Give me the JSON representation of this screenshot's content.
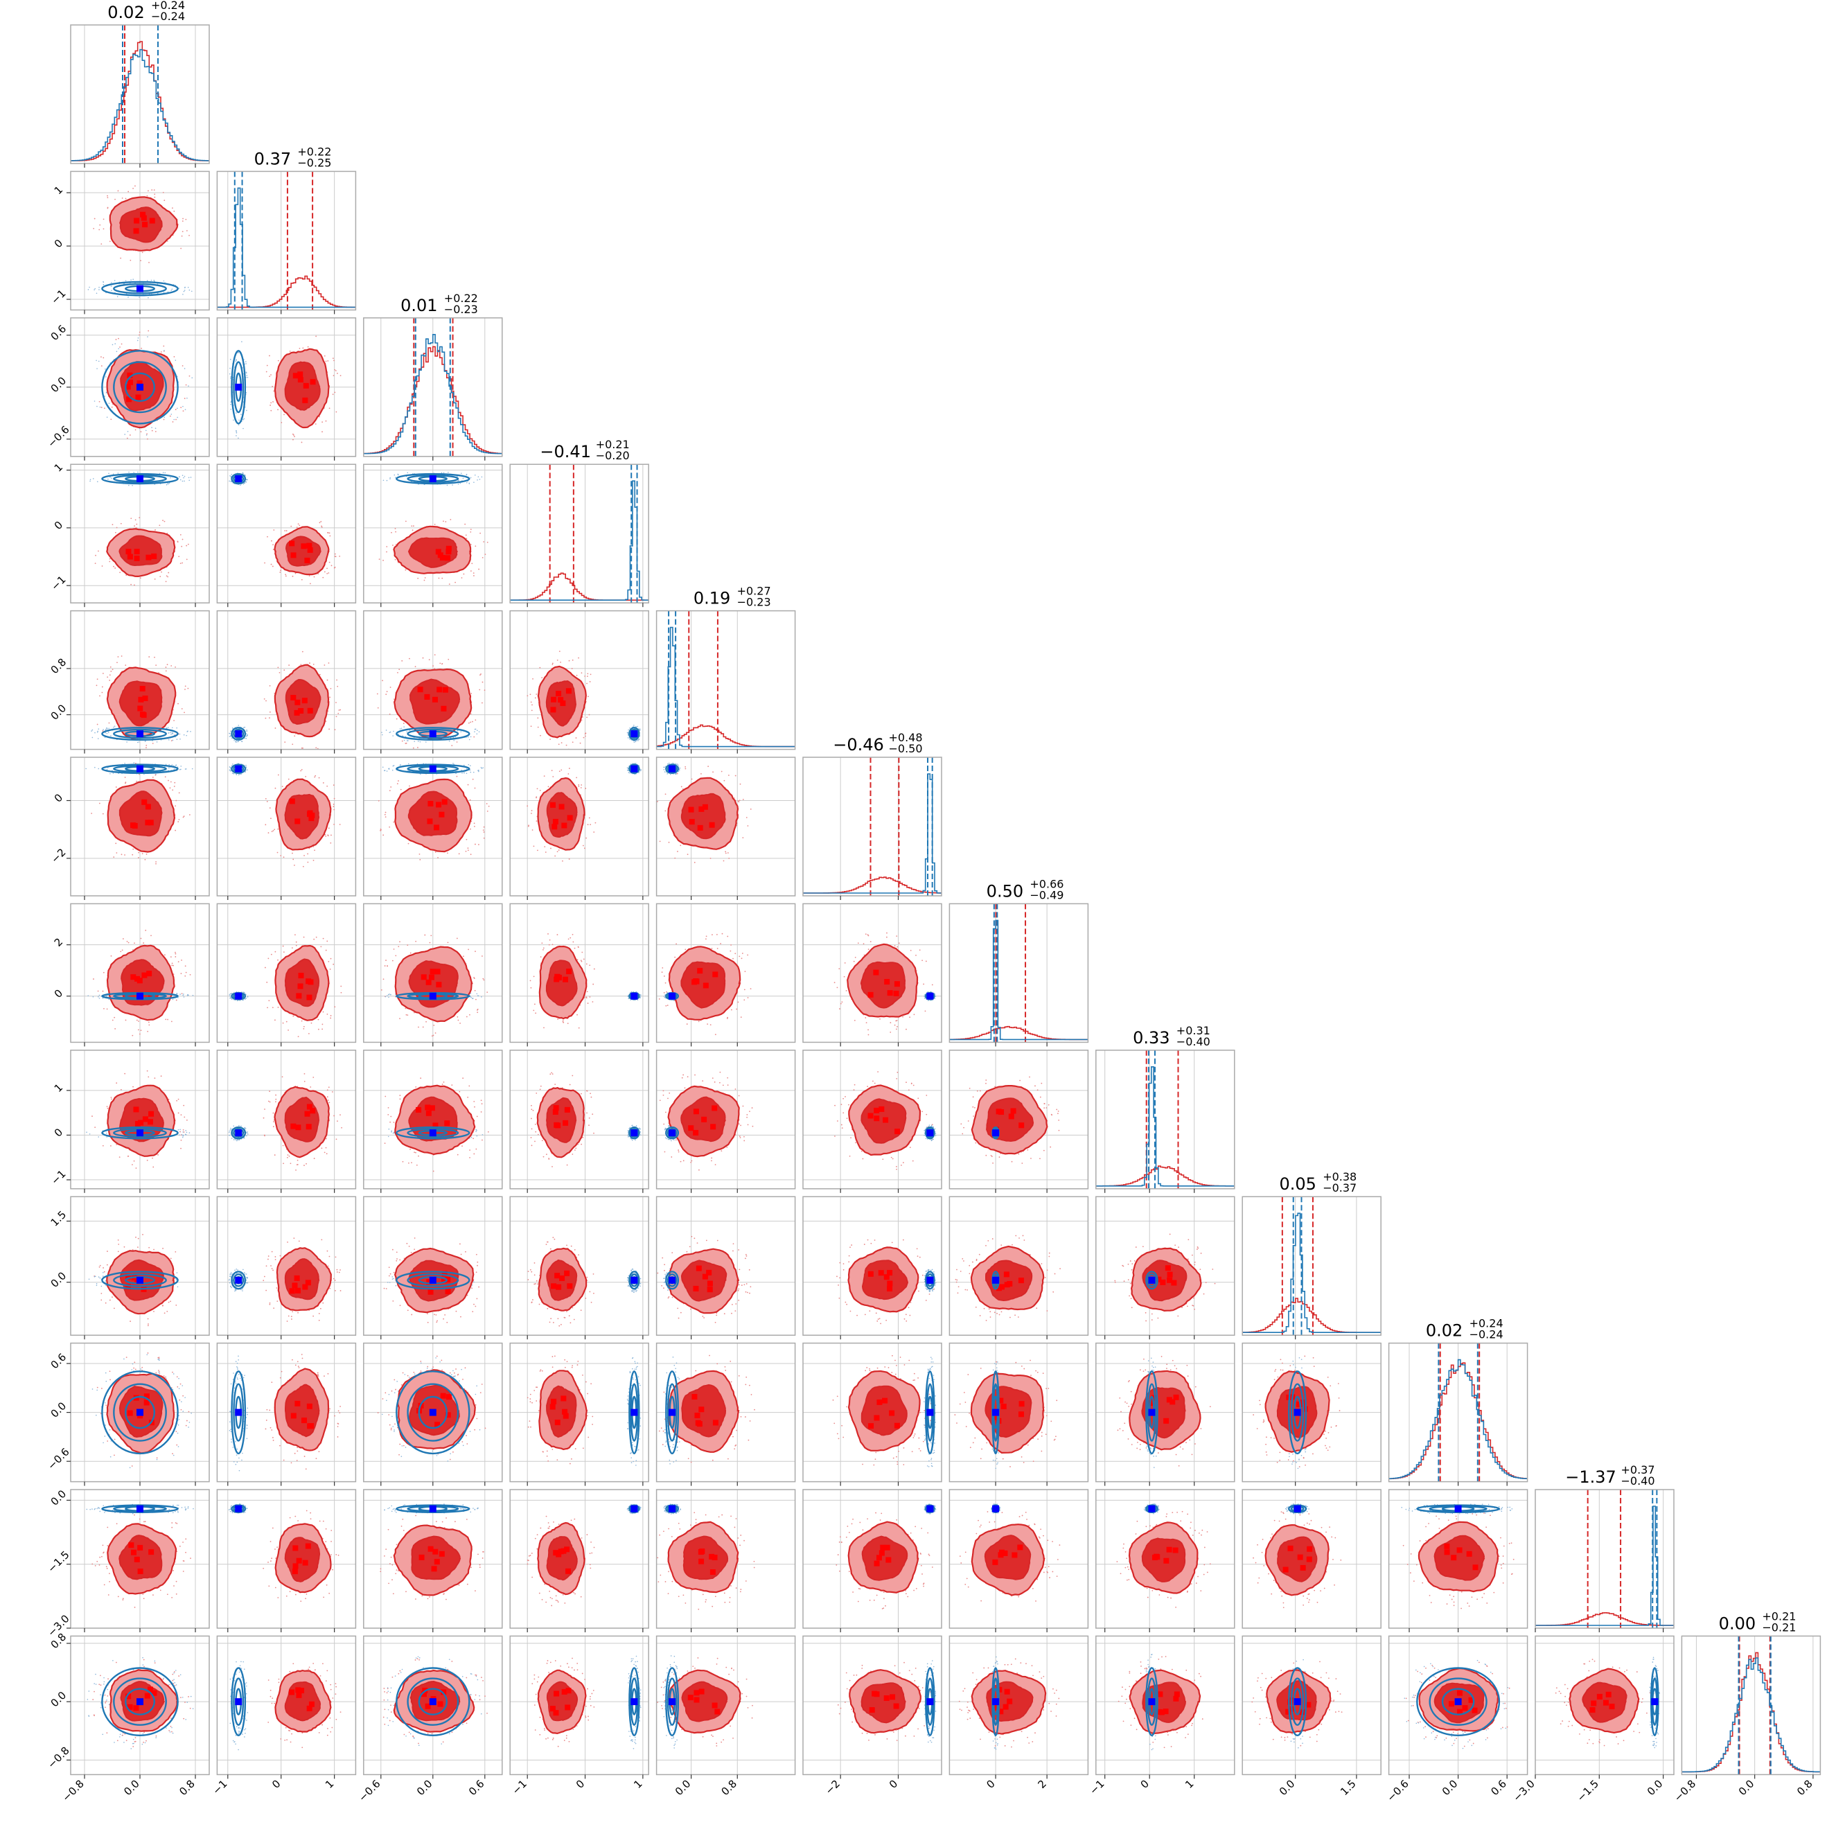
{
  "figure": {
    "kind": "corner-plot",
    "colors": {
      "red_line": "#d62728",
      "red_fill_outer": "#f2a0a0",
      "red_fill_inner": "#dd2b2b",
      "blue_line": "#1f77b4",
      "marker_red": "#ff0000",
      "marker_blue": "#0000ff",
      "frame": "#aaaaaa",
      "grid": "#cccccc"
    }
  },
  "chart_data": {
    "type": "corner",
    "n_params": 12,
    "titles": [
      {
        "median": "0.02",
        "plus": "+0.24",
        "minus": "−0.24"
      },
      {
        "median": "0.37",
        "plus": "+0.22",
        "minus": "−0.25"
      },
      {
        "median": "0.01",
        "plus": "+0.22",
        "minus": "−0.23"
      },
      {
        "median": "−0.41",
        "plus": "+0.21",
        "minus": "−0.20"
      },
      {
        "median": "0.19",
        "plus": "+0.27",
        "minus": "−0.23"
      },
      {
        "median": "−0.46",
        "plus": "+0.48",
        "minus": "−0.50"
      },
      {
        "median": "0.50",
        "plus": "+0.66",
        "minus": "−0.49"
      },
      {
        "median": "0.33",
        "plus": "+0.31",
        "minus": "−0.40"
      },
      {
        "median": "0.05",
        "plus": "+0.38",
        "minus": "−0.37"
      },
      {
        "median": "0.02",
        "plus": "+0.24",
        "minus": "−0.24"
      },
      {
        "median": "−1.37",
        "plus": "+0.37",
        "minus": "−0.40"
      },
      {
        "median": "0.00",
        "plus": "+0.21",
        "minus": "−0.21"
      }
    ],
    "params": [
      {
        "range": [
          -1,
          1
        ],
        "ticks": [
          -0.8,
          0,
          0.8
        ],
        "tick_labels": [
          "−0.8",
          "0.0",
          "0.8"
        ],
        "red": {
          "mu": 0.02,
          "sd": 0.24,
          "q": [
            -0.22,
            0.02,
            0.26
          ]
        },
        "blue": {
          "mu": 0.0,
          "sd": 0.26,
          "q": [
            -0.25,
            0.0,
            0.26
          ]
        }
      },
      {
        "range": [
          -1.2,
          1.4
        ],
        "ticks": [
          -1,
          0,
          1
        ],
        "tick_labels": [
          "−1",
          "0",
          "1"
        ],
        "red": {
          "mu": 0.4,
          "sd": 0.25,
          "q": [
            0.12,
            0.37,
            0.59
          ]
        },
        "blue": {
          "mu": -0.8,
          "sd": 0.06,
          "q": [
            -0.87,
            -0.8,
            -0.73
          ]
        }
      },
      {
        "range": [
          -0.8,
          0.8
        ],
        "ticks": [
          -0.6,
          0,
          0.6
        ],
        "tick_labels": [
          "−0.6",
          "0.0",
          "0.6"
        ],
        "red": {
          "mu": 0.01,
          "sd": 0.22,
          "q": [
            -0.22,
            0.01,
            0.23
          ]
        },
        "blue": {
          "mu": 0.0,
          "sd": 0.2,
          "q": [
            -0.2,
            0.0,
            0.2
          ]
        }
      },
      {
        "range": [
          -1.3,
          1.1
        ],
        "ticks": [
          -1,
          0,
          1
        ],
        "tick_labels": [
          "−1",
          "0",
          "1"
        ],
        "red": {
          "mu": -0.41,
          "sd": 0.2,
          "q": [
            -0.61,
            -0.41,
            -0.2
          ]
        },
        "blue": {
          "mu": 0.85,
          "sd": 0.04,
          "q": [
            0.8,
            0.85,
            0.9
          ]
        }
      },
      {
        "range": [
          -0.6,
          1.8
        ],
        "ticks": [
          0,
          0.8
        ],
        "tick_labels": [
          "0.0",
          "0.8"
        ],
        "red": {
          "mu": 0.22,
          "sd": 0.3,
          "q": [
            -0.04,
            0.19,
            0.46
          ]
        },
        "blue": {
          "mu": -0.33,
          "sd": 0.05,
          "q": [
            -0.39,
            -0.33,
            -0.27
          ]
        }
      },
      {
        "range": [
          -3.3,
          1.5
        ],
        "ticks": [
          -2,
          0
        ],
        "tick_labels": [
          "−2",
          "0"
        ],
        "red": {
          "mu": -0.5,
          "sd": 0.6,
          "q": [
            -0.96,
            -0.46,
            0.02
          ]
        },
        "blue": {
          "mu": 1.1,
          "sd": 0.07,
          "q": [
            1.02,
            1.1,
            1.18
          ]
        }
      },
      {
        "range": [
          -1.8,
          3.6
        ],
        "ticks": [
          0,
          2
        ],
        "tick_labels": [
          "0",
          "2"
        ],
        "red": {
          "mu": 0.5,
          "sd": 0.7,
          "q": [
            0.01,
            0.5,
            1.16
          ]
        },
        "blue": {
          "mu": 0.0,
          "sd": 0.06,
          "q": [
            -0.06,
            0.0,
            0.06
          ]
        }
      },
      {
        "range": [
          -1.2,
          1.9
        ],
        "ticks": [
          -1,
          0,
          1
        ],
        "tick_labels": [
          "−1",
          "0",
          "1"
        ],
        "red": {
          "mu": 0.33,
          "sd": 0.38,
          "q": [
            -0.07,
            0.33,
            0.64
          ]
        },
        "blue": {
          "mu": 0.05,
          "sd": 0.06,
          "q": [
            -0.02,
            0.05,
            0.12
          ]
        }
      },
      {
        "range": [
          -1.3,
          2.1
        ],
        "ticks": [
          0,
          1.5
        ],
        "tick_labels": [
          "0.0",
          "1.5"
        ],
        "red": {
          "mu": 0.05,
          "sd": 0.38,
          "q": [
            -0.32,
            0.05,
            0.43
          ]
        },
        "blue": {
          "mu": 0.05,
          "sd": 0.1,
          "q": [
            -0.05,
            0.05,
            0.15
          ]
        }
      },
      {
        "range": [
          -0.85,
          0.85
        ],
        "ticks": [
          -0.6,
          0,
          0.6
        ],
        "tick_labels": [
          "−0.6",
          "0.0",
          "0.6"
        ],
        "red": {
          "mu": 0.02,
          "sd": 0.24,
          "q": [
            -0.22,
            0.02,
            0.26
          ]
        },
        "blue": {
          "mu": 0.0,
          "sd": 0.24,
          "q": [
            -0.24,
            0.0,
            0.24
          ]
        }
      },
      {
        "range": [
          -3.0,
          0.25
        ],
        "ticks": [
          -3.0,
          -1.5,
          0.0
        ],
        "tick_labels": [
          "−3.0",
          "−1.5",
          "0.0"
        ],
        "red": {
          "mu": -1.37,
          "sd": 0.4,
          "q": [
            -1.77,
            -1.37,
            -1.0
          ]
        },
        "blue": {
          "mu": -0.2,
          "sd": 0.04,
          "q": [
            -0.25,
            -0.2,
            -0.15
          ]
        }
      },
      {
        "range": [
          -1.0,
          0.9
        ],
        "ticks": [
          -0.8,
          0,
          0.8
        ],
        "tick_labels": [
          "−0.8",
          "0.0",
          "0.8"
        ],
        "red": {
          "mu": 0.0,
          "sd": 0.21,
          "q": [
            -0.21,
            0.0,
            0.21
          ]
        },
        "blue": {
          "mu": 0.0,
          "sd": 0.22,
          "q": [
            -0.22,
            0.0,
            0.22
          ]
        }
      }
    ]
  }
}
